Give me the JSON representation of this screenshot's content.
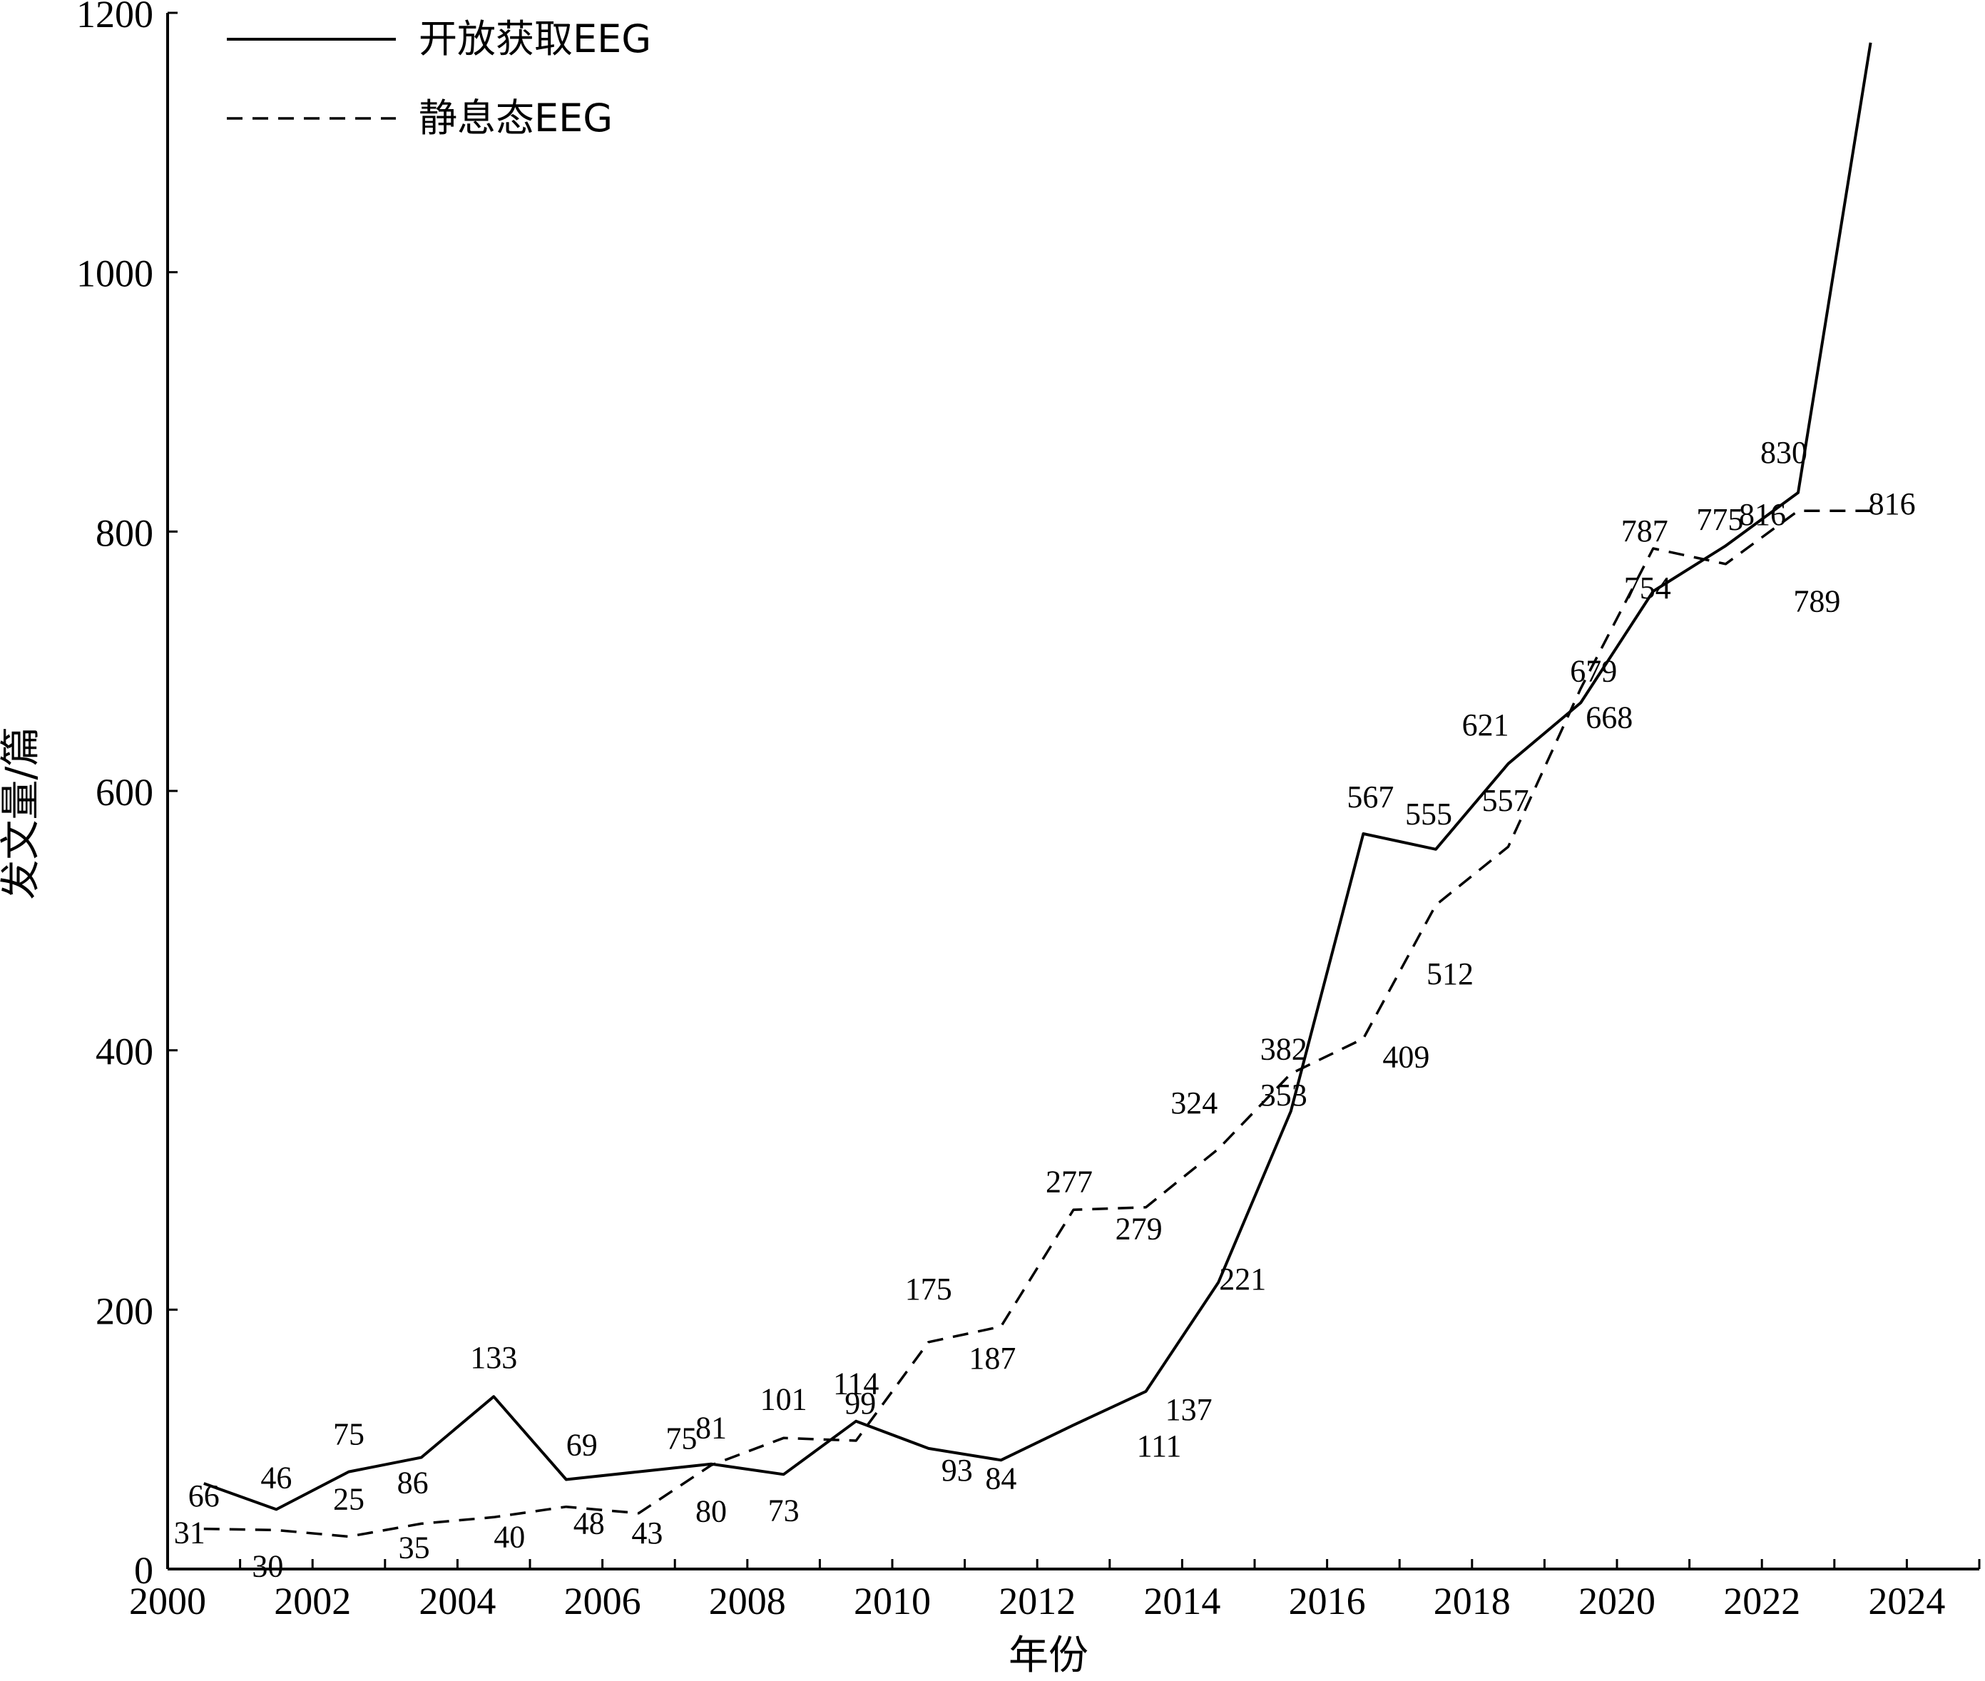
{
  "chart_data": {
    "type": "line",
    "title": "",
    "xlabel": "年份",
    "ylabel": "发文量/篇",
    "xlim": [
      2000,
      2025
    ],
    "ylim": [
      0,
      1200
    ],
    "x_ticks": [
      "2000",
      "2002",
      "2004",
      "2006",
      "2008",
      "2010",
      "2012",
      "2014",
      "2016",
      "2018",
      "2020",
      "2022",
      "2024"
    ],
    "y_ticks": [
      "0",
      "200",
      "400",
      "600",
      "800",
      "1000",
      "1200"
    ],
    "grid": false,
    "legend_position": "top-left",
    "series": [
      {
        "name": "开放获取EEG",
        "style": "solid",
        "x": [
          2000.5,
          2001.5,
          2002.5,
          2003.5,
          2004.5,
          2005.5,
          2006.5,
          2007.5,
          2008.5,
          2009.5,
          2010.5,
          2011.5,
          2012.5,
          2013.5,
          2014.5,
          2015.5,
          2016.5,
          2017.5,
          2018.5,
          2019.5,
          2020.5,
          2021.5,
          2022.5,
          2023.5
        ],
        "values": [
          66,
          46,
          75,
          86,
          133,
          69,
          75,
          81,
          73,
          114,
          93,
          84,
          111,
          137,
          221,
          353,
          567,
          555,
          621,
          668,
          754,
          789,
          830,
          1177
        ]
      },
      {
        "name": "静息态EEG",
        "style": "dashed",
        "x": [
          2000.5,
          2001.5,
          2002.5,
          2003.5,
          2004.5,
          2005.5,
          2006.5,
          2007.5,
          2008.5,
          2009.5,
          2010.5,
          2011.5,
          2012.5,
          2013.5,
          2014.5,
          2015.5,
          2016.5,
          2017.5,
          2018.5,
          2019.5,
          2020.5,
          2021.5,
          2022.5,
          2023.5
        ],
        "values": [
          31,
          30,
          25,
          35,
          40,
          48,
          43,
          80,
          101,
          99,
          175,
          187,
          277,
          279,
          324,
          382,
          409,
          512,
          557,
          679,
          787,
          775,
          816,
          816
        ]
      }
    ]
  }
}
